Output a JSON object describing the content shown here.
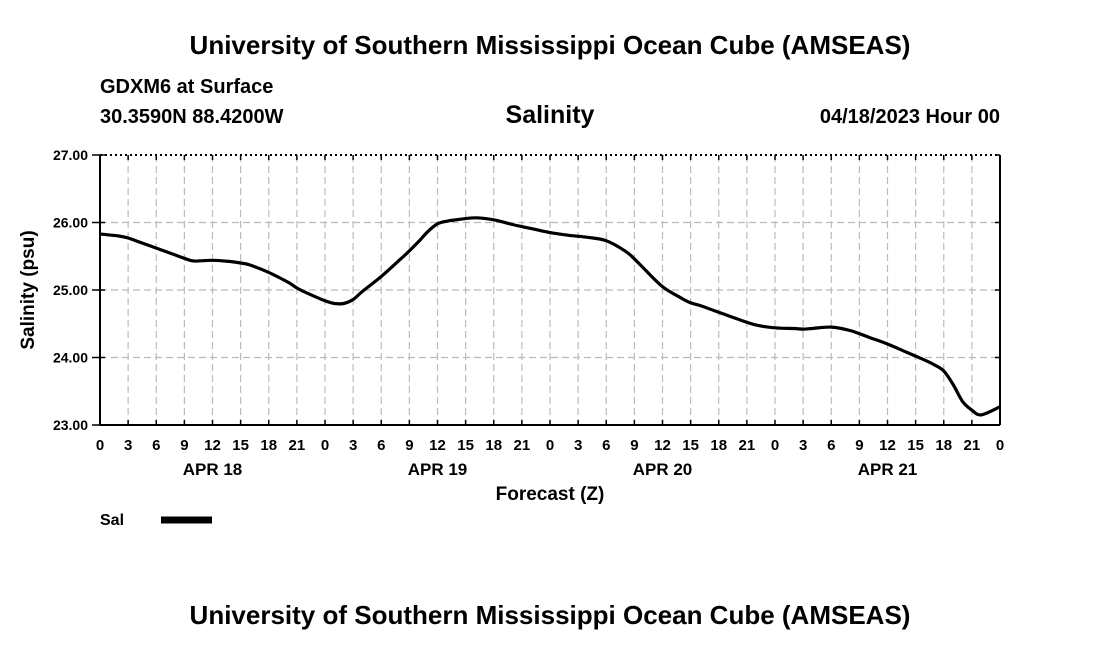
{
  "header": {
    "title": "University of Southern Mississippi Ocean Cube (AMSEAS)",
    "station": "GDXM6 at Surface",
    "coordinates": "30.3590N  88.4200W",
    "variable": "Salinity",
    "datetime": "04/18/2023 Hour 00"
  },
  "footer": {
    "title": "University of Southern Mississippi Ocean Cube (AMSEAS)"
  },
  "chart_data": {
    "type": "line",
    "title": "Salinity",
    "xlabel": "Forecast (Z)",
    "ylabel": "Salinity (psu)",
    "ylim": [
      23.0,
      27.0
    ],
    "yticks": [
      "23.00",
      "24.00",
      "25.00",
      "26.00",
      "27.00"
    ],
    "xlim_hours": [
      0,
      96
    ],
    "xtick_labels": [
      "0",
      "3",
      "6",
      "9",
      "12",
      "15",
      "18",
      "21",
      "0",
      "3",
      "6",
      "9",
      "12",
      "15",
      "18",
      "21",
      "0",
      "3",
      "6",
      "9",
      "12",
      "15",
      "18",
      "21",
      "0",
      "3",
      "6",
      "9",
      "12",
      "15",
      "18",
      "21",
      "0"
    ],
    "date_labels": [
      {
        "label": "APR 18",
        "hour": 12
      },
      {
        "label": "APR 19",
        "hour": 36
      },
      {
        "label": "APR 20",
        "hour": 60
      },
      {
        "label": "APR 21",
        "hour": 84
      }
    ],
    "grid": true,
    "legend": {
      "label": "Sal",
      "placement": "bottom-left"
    },
    "series": [
      {
        "name": "Sal",
        "x_hours": [
          0,
          2,
          3,
          4,
          6,
          8,
          9,
          10,
          12,
          14,
          15,
          16,
          18,
          20,
          21,
          22,
          24,
          25,
          26,
          27,
          28,
          30,
          32,
          33,
          34,
          35,
          36,
          37,
          38,
          40,
          42,
          44,
          46,
          48,
          50,
          52,
          54,
          56,
          57,
          58,
          60,
          62,
          63,
          64,
          66,
          68,
          70,
          72,
          74,
          75,
          76,
          78,
          80,
          82,
          84,
          86,
          88,
          89,
          90,
          91,
          92,
          93,
          94,
          96
        ],
        "values": [
          25.83,
          25.8,
          25.77,
          25.72,
          25.62,
          25.52,
          25.47,
          25.43,
          25.44,
          25.42,
          25.4,
          25.37,
          25.26,
          25.12,
          25.03,
          24.96,
          24.84,
          24.8,
          24.8,
          24.86,
          24.98,
          25.2,
          25.45,
          25.58,
          25.72,
          25.87,
          25.98,
          26.02,
          26.04,
          26.07,
          26.04,
          25.97,
          25.91,
          25.85,
          25.81,
          25.78,
          25.73,
          25.58,
          25.46,
          25.32,
          25.05,
          24.88,
          24.81,
          24.77,
          24.67,
          24.57,
          24.48,
          24.44,
          24.43,
          24.42,
          24.43,
          24.45,
          24.4,
          24.3,
          24.2,
          24.08,
          23.96,
          23.89,
          23.8,
          23.6,
          23.35,
          23.22,
          23.15,
          23.27
        ]
      }
    ]
  }
}
